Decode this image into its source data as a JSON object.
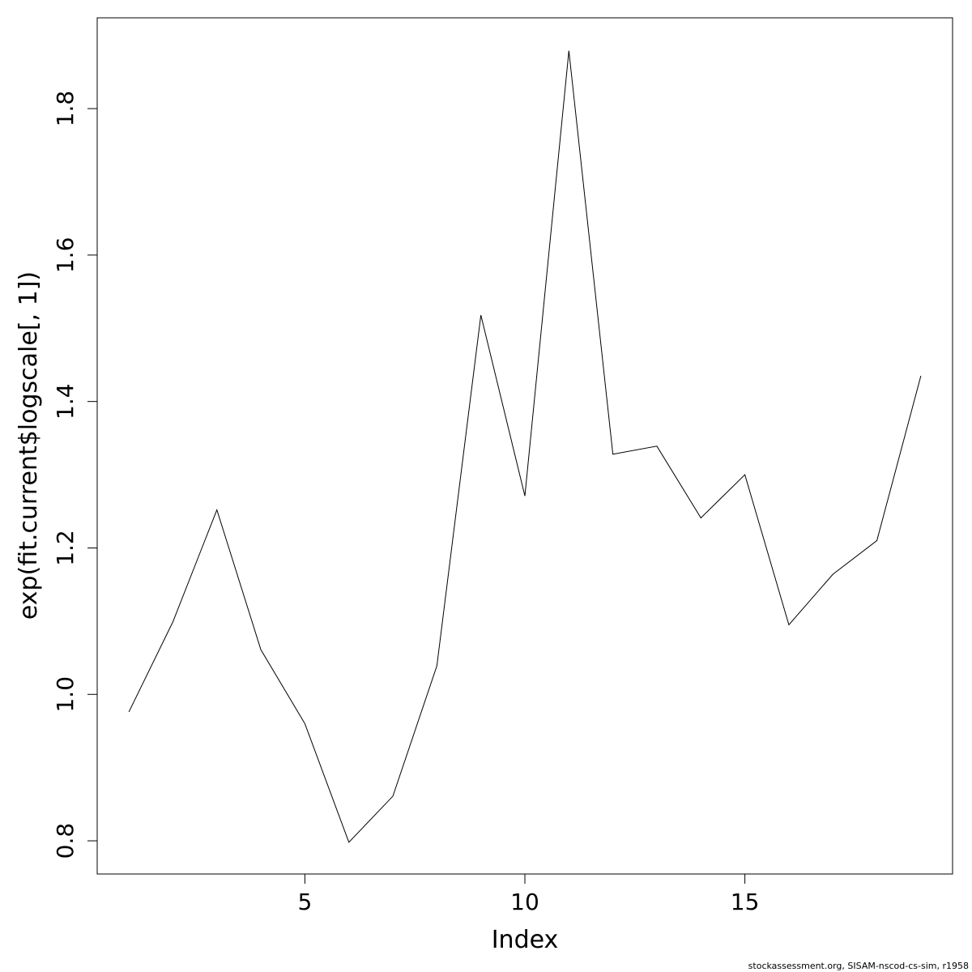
{
  "chart_data": {
    "type": "line",
    "x_label": "Index",
    "y_label": "exp(fit.current$logscale[, 1])",
    "footer": "stockassessment.org, SISAM-nscod-cs-sim, r1958",
    "x": [
      1,
      2,
      3,
      4,
      5,
      6,
      7,
      8,
      9,
      10,
      11,
      12,
      13,
      14,
      15,
      16,
      17,
      18,
      19
    ],
    "series": [
      {
        "color": "#000000",
        "values": [
          0.976,
          1.099,
          1.252,
          1.061,
          0.96,
          0.798,
          0.861,
          1.039,
          1.518,
          1.271,
          1.879,
          1.328,
          1.339,
          1.241,
          1.3,
          1.095,
          1.164,
          1.21,
          1.435
        ]
      }
    ],
    "xlim": [
      0.28,
      19.72
    ],
    "ylim": [
      0.7547,
      1.924
    ],
    "xticks": [
      5,
      10,
      15
    ],
    "yticks": [
      0.8,
      {
        "value": 1,
        "label": "1.0"
      },
      1.2,
      1.4,
      1.6,
      1.8
    ]
  }
}
